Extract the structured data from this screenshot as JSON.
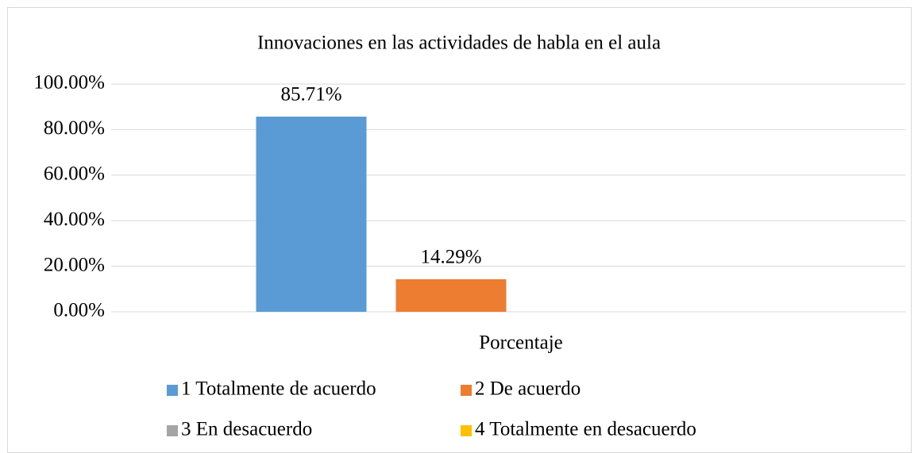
{
  "chart_data": {
    "type": "bar",
    "title": "Innovaciones en las actividades de habla en el aula",
    "categories": [
      "Porcentaje"
    ],
    "series": [
      {
        "name": "1 Totalmente de acuerdo",
        "color": "#5b9bd5",
        "values": [
          85.71
        ],
        "value_labels": [
          "85.71%"
        ]
      },
      {
        "name": "2 De acuerdo",
        "color": "#ed7d31",
        "values": [
          14.29
        ],
        "value_labels": [
          "14.29%"
        ]
      },
      {
        "name": "3 En desacuerdo",
        "color": "#a5a5a5",
        "values": [
          0
        ]
      },
      {
        "name": "4 Totalmente en desacuerdo",
        "color": "#ffc000",
        "values": [
          0
        ]
      }
    ],
    "ylim": [
      0,
      100
    ],
    "yticks": [
      {
        "value": 0,
        "label": "0.00%"
      },
      {
        "value": 20,
        "label": "20.00%"
      },
      {
        "value": 40,
        "label": "40.00%"
      },
      {
        "value": 60,
        "label": "60.00%"
      },
      {
        "value": 80,
        "label": "80.00%"
      },
      {
        "value": 100,
        "label": "100.00%"
      }
    ],
    "grid": true,
    "legend": "bottom"
  }
}
